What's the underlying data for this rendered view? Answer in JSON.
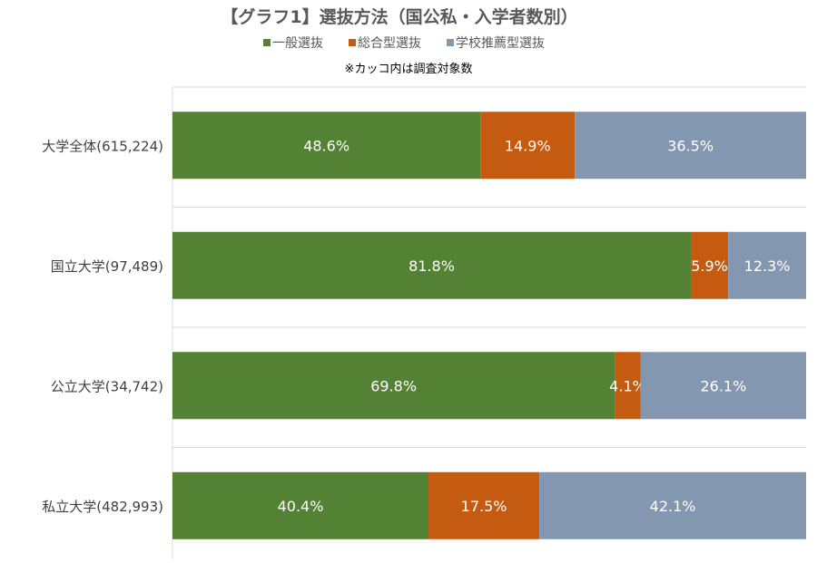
{
  "chart_data": {
    "type": "bar",
    "orientation": "horizontal",
    "stacked": "100%",
    "title": "【グラフ1】選抜方法（国公私・入学者数別）",
    "subtitle": "※カッコ内は調査対象数",
    "categories": [
      "大学全体(615,224)",
      "国立大学(97,489)",
      "公立大学(34,742)",
      "私立大学(482,993)"
    ],
    "series": [
      {
        "name": "一般選抜",
        "color": "#548235",
        "values": [
          48.6,
          81.8,
          69.8,
          40.4
        ],
        "labels": [
          "48.6%",
          "81.8%",
          "69.8%",
          "40.4%"
        ]
      },
      {
        "name": "総合型選抜",
        "color": "#c55a11",
        "values": [
          14.9,
          5.9,
          4.1,
          17.5
        ],
        "labels": [
          "14.9%",
          "5.9%",
          "4.1%",
          "17.5%"
        ]
      },
      {
        "name": "学校推薦型選抜",
        "color": "#8497b0",
        "values": [
          36.5,
          12.3,
          26.1,
          42.1
        ],
        "labels": [
          "36.5%",
          "12.3%",
          "26.1%",
          "42.1%"
        ]
      }
    ],
    "xlim": [
      0,
      100
    ],
    "legend": "top",
    "grid": true
  }
}
